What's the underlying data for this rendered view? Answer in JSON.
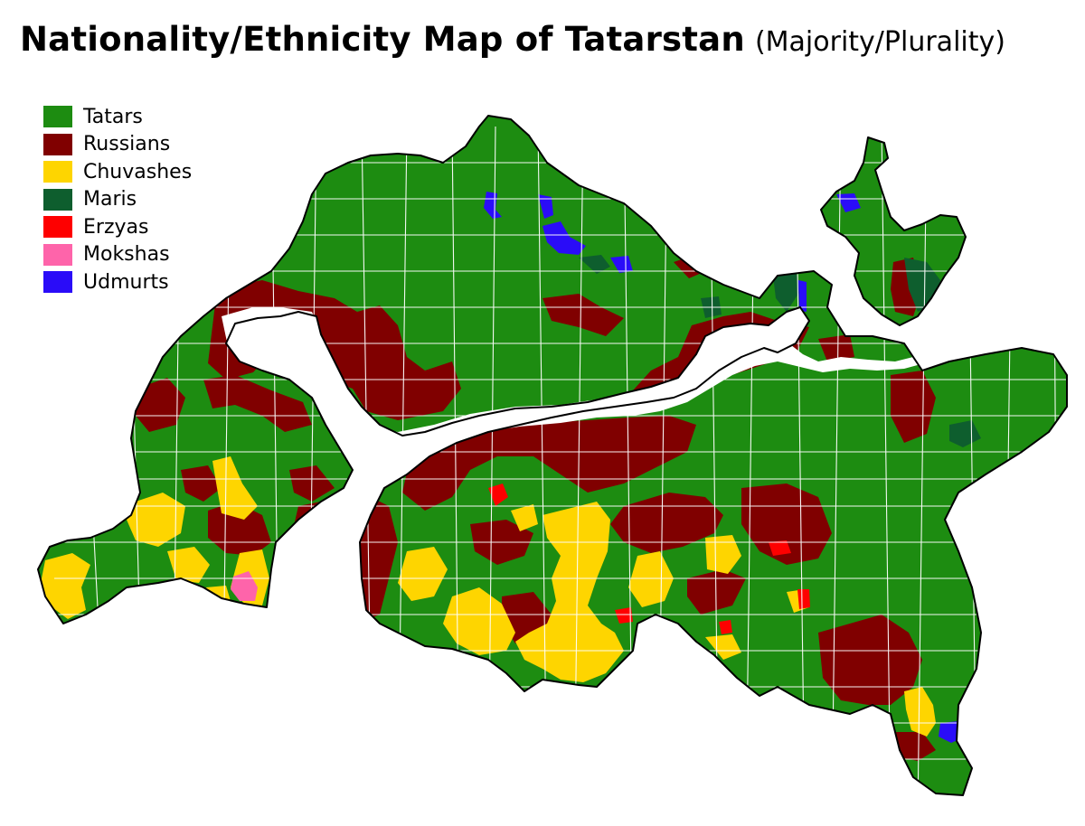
{
  "title": {
    "main": "Nationality/Ethnicity Map of Tatarstan",
    "sub": "(Majority/Plurality)"
  },
  "legend": [
    {
      "label": "Tatars",
      "color": "#1d8c11"
    },
    {
      "label": "Russians",
      "color": "#800000"
    },
    {
      "label": "Chuvashes",
      "color": "#fed500"
    },
    {
      "label": "Maris",
      "color": "#0e5e2e"
    },
    {
      "label": "Erzyas",
      "color": "#fe0000"
    },
    {
      "label": "Mokshas",
      "color": "#fe64aa"
    },
    {
      "label": "Udmurts",
      "color": "#2a0cf8"
    }
  ],
  "colors": {
    "background": "#ffffff",
    "water": "#ffffff",
    "borders": "#ffffff",
    "outline": "#000000"
  }
}
